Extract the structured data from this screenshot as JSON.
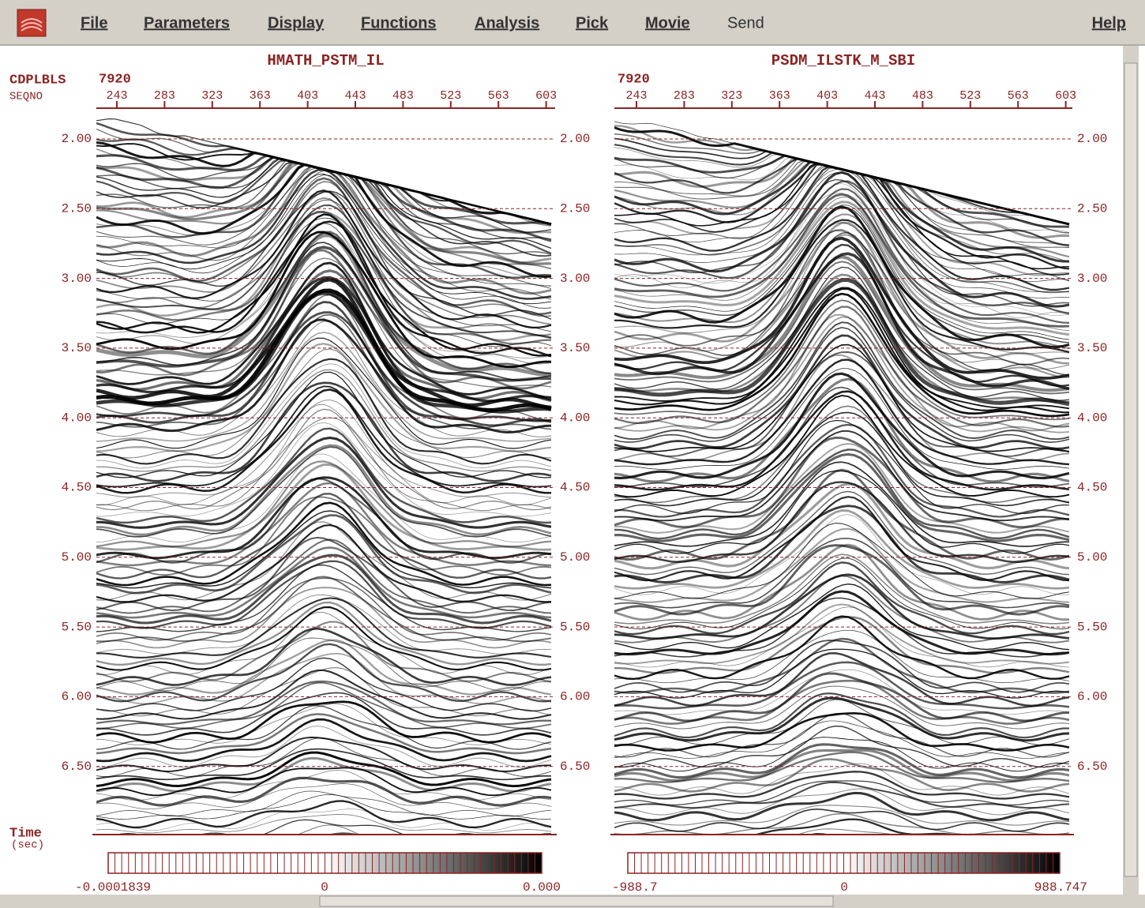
{
  "menu": {
    "items": [
      {
        "label": "File",
        "enabled": true
      },
      {
        "label": "Parameters",
        "enabled": true
      },
      {
        "label": "Display",
        "enabled": true
      },
      {
        "label": "Functions",
        "enabled": true
      },
      {
        "label": "Analysis",
        "enabled": true
      },
      {
        "label": "Pick",
        "enabled": true
      },
      {
        "label": "Movie",
        "enabled": true
      },
      {
        "label": "Send",
        "enabled": false
      }
    ],
    "help": "Help"
  },
  "axis_labels": {
    "header": "CDPLBLS",
    "trace": "SEQNO",
    "time": "Time",
    "time_unit": "(sec)"
  },
  "panels": [
    {
      "title": "HMATH_PSTM_IL",
      "line": "7920",
      "x_ticks": [
        "243",
        "283",
        "323",
        "363",
        "403",
        "443",
        "483",
        "523",
        "563",
        "603"
      ],
      "y_ticks": [
        "2.00",
        "2.50",
        "3.00",
        "3.50",
        "4.00",
        "4.50",
        "5.00",
        "5.50",
        "6.00",
        "6.50"
      ],
      "colorbar": {
        "min": "-0.0001839",
        "mid": "0",
        "max": "0.000"
      }
    },
    {
      "title": "PSDM_ILSTK_M_SBI",
      "line": "7920",
      "x_ticks": [
        "243",
        "283",
        "323",
        "363",
        "403",
        "443",
        "483",
        "523",
        "563",
        "603"
      ],
      "y_ticks": [
        "2.00",
        "2.50",
        "3.00",
        "3.50",
        "4.00",
        "4.50",
        "5.00",
        "5.50",
        "6.00",
        "6.50"
      ],
      "colorbar": {
        "min": "-988.7",
        "mid": "0",
        "max": "988.747"
      }
    }
  ]
}
